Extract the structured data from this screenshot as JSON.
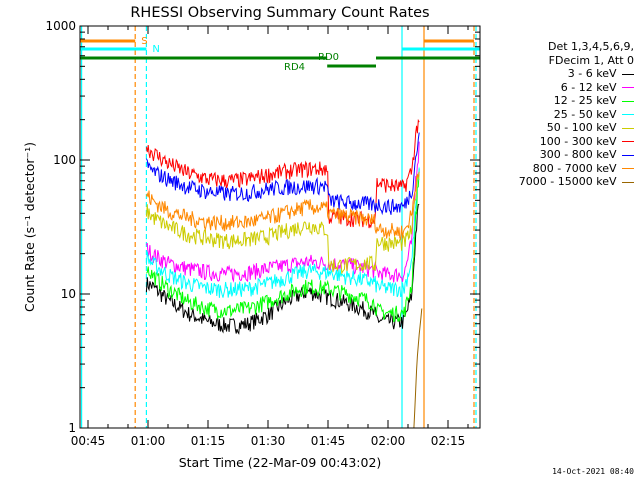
{
  "chart_data": {
    "type": "line",
    "title": "RHESSI Observing Summary Count Rates",
    "xlabel": "Start Time (22-Mar-09 00:43:02)",
    "ylabel": "Count Rate (s⁻¹ detector⁻¹)",
    "yscale": "log",
    "ylim": [
      1,
      1000
    ],
    "xlim_minutes": [
      43.0,
      143.0
    ],
    "x_ticks": [
      {
        "label": "00:45",
        "minute": 45
      },
      {
        "label": "01:00",
        "minute": 60
      },
      {
        "label": "01:15",
        "minute": 75
      },
      {
        "label": "01:30",
        "minute": 90
      },
      {
        "label": "01:45",
        "minute": 105
      },
      {
        "label": "02:00",
        "minute": 120
      },
      {
        "label": "02:15",
        "minute": 135
      }
    ],
    "y_ticks": [
      {
        "label": "1",
        "value": 1
      },
      {
        "label": "10",
        "value": 10
      },
      {
        "label": "100",
        "value": 100
      },
      {
        "label": "1000",
        "value": 1000
      }
    ],
    "legend_header": [
      "Det 1,3,4,5,6,9,",
      "FDecim 1, Att 0"
    ],
    "series": [
      {
        "name": "3 - 6 keV",
        "color": "#000000",
        "minutes": [
          59.6,
          61,
          65,
          70,
          75,
          80,
          85,
          90,
          95,
          100,
          104.9,
          105.1,
          110,
          115,
          116.9,
          117.1,
          120,
          124,
          126,
          127,
          128
        ],
        "values": [
          12,
          11.5,
          9,
          7.2,
          6.2,
          5.8,
          6,
          7,
          9,
          10.5,
          9.5,
          9.5,
          8.5,
          7.5,
          7,
          6.5,
          6.2,
          6.2,
          10,
          30,
          55
        ]
      },
      {
        "name": "6 - 12 keV",
        "color": "#ff00ff",
        "minutes": [
          59.6,
          61,
          65,
          70,
          75,
          80,
          85,
          90,
          95,
          100,
          104.9,
          105.1,
          110,
          115,
          116.9,
          117.1,
          120,
          124,
          126,
          127,
          128
        ],
        "values": [
          22,
          20,
          17,
          15.5,
          14.5,
          14.2,
          14.5,
          15.5,
          16.5,
          17.5,
          17,
          17,
          16.5,
          15.5,
          15,
          14.5,
          14,
          14,
          25,
          80,
          140
        ]
      },
      {
        "name": "12 - 25 keV",
        "color": "#00ff00",
        "minutes": [
          59.6,
          61,
          65,
          70,
          75,
          80,
          85,
          90,
          95,
          100,
          104.9,
          105.1,
          110,
          115,
          116.9,
          117.1,
          120,
          124,
          126,
          127,
          128
        ],
        "values": [
          16,
          14,
          11,
          8.8,
          7.8,
          7.5,
          7.8,
          8.8,
          10.2,
          11.5,
          11,
          11,
          10,
          9,
          8.5,
          7.5,
          7.2,
          7.2,
          12,
          40,
          100
        ]
      },
      {
        "name": "25 - 50 keV",
        "color": "#00ffff",
        "minutes": [
          59.6,
          61,
          65,
          70,
          75,
          80,
          85,
          90,
          95,
          100,
          104.9,
          105.1,
          110,
          115,
          116.9,
          117.1,
          120,
          124,
          126,
          127,
          128
        ],
        "values": [
          19,
          17,
          14,
          12,
          11,
          10.8,
          11,
          12,
          13.5,
          15,
          14.5,
          14.5,
          13.5,
          12.5,
          12,
          11.5,
          11,
          11,
          18,
          50,
          90
        ]
      },
      {
        "name": "50 - 100 keV",
        "color": "#cccc00",
        "minutes": [
          59.6,
          61,
          65,
          70,
          75,
          80,
          85,
          90,
          95,
          100,
          104.9,
          105.1,
          110,
          115,
          116.9,
          117.1,
          120,
          124,
          126,
          127,
          128
        ],
        "values": [
          42,
          38,
          32,
          28,
          26,
          25,
          25.5,
          27,
          30,
          33,
          30,
          16.5,
          16.5,
          17,
          16.5,
          25,
          24,
          24,
          30,
          60,
          90
        ]
      },
      {
        "name": "100 - 300 keV",
        "color": "#ff0000",
        "minutes": [
          59.6,
          61,
          65,
          70,
          75,
          80,
          85,
          90,
          95,
          100,
          104.9,
          105.1,
          110,
          115,
          116.9,
          117.1,
          120,
          124,
          126,
          127,
          128
        ],
        "values": [
          125,
          115,
          95,
          80,
          72,
          70,
          72,
          78,
          83,
          86,
          86,
          38,
          37,
          36,
          36,
          68,
          65,
          62,
          85,
          160,
          220
        ]
      },
      {
        "name": "300 - 800 keV",
        "color": "#0000ff",
        "minutes": [
          59.6,
          61,
          65,
          70,
          75,
          80,
          85,
          90,
          95,
          100,
          104.9,
          105.1,
          110,
          115,
          116.9,
          117.1,
          120,
          124,
          126,
          127,
          128
        ],
        "values": [
          90,
          83,
          72,
          63,
          58,
          56,
          57,
          61,
          63,
          64,
          64,
          50,
          48,
          47,
          46,
          47,
          45,
          45,
          60,
          110,
          160
        ]
      },
      {
        "name": "800 - 7000 keV",
        "color": "#ff8800",
        "minutes": [
          59.6,
          61,
          65,
          70,
          75,
          80,
          85,
          90,
          95,
          100,
          104.9,
          105.1,
          110,
          115,
          116.9,
          117.1,
          120,
          124,
          126,
          127,
          128
        ],
        "values": [
          56,
          50,
          42,
          37,
          34.5,
          34,
          34.5,
          37,
          41,
          45,
          43,
          40,
          38,
          36,
          35,
          31,
          30,
          29,
          40,
          70,
          100
        ]
      },
      {
        "name": "7000 - 15000 keV",
        "color": "#996600",
        "minutes": [
          59.6,
          126.5,
          127.2,
          127.8,
          128.5
        ],
        "values": [
          1,
          1,
          3,
          5,
          8
        ]
      }
    ],
    "annotations": [
      {
        "text": "S",
        "color": "#ff8800",
        "minute": 56.8
      },
      {
        "text": "N",
        "color": "#00ffff",
        "minute": 60
      },
      {
        "text": "RD0",
        "color": "#008000"
      },
      {
        "text": "RD4",
        "color": "#008000"
      }
    ],
    "flags": [
      {
        "name": "S (SAA)",
        "color": "#ff8800",
        "from": 43,
        "to": 56.8
      },
      {
        "name": "S (SAA)",
        "color": "#ff8800",
        "from": 129,
        "to": 141.5
      },
      {
        "name": "N (night)",
        "color": "#00ffff",
        "from": 43,
        "to": 59.6
      },
      {
        "name": "N (night)",
        "color": "#00ffff",
        "from": 123.5,
        "to": 143
      },
      {
        "name": "RD0",
        "color": "#008000",
        "from": 43,
        "to": 104.8
      },
      {
        "name": "RD0",
        "color": "#008000",
        "from": 117,
        "to": 143
      },
      {
        "name": "RD4",
        "color": "#008000",
        "from": 104.8,
        "to": 117
      }
    ],
    "vertical_markers": [
      {
        "minute": 43.4,
        "color": "#00ffff",
        "style": "solid"
      },
      {
        "minute": 56.8,
        "color": "#ff8800",
        "style": "dashed"
      },
      {
        "minute": 59.6,
        "color": "#00ffff",
        "style": "dashed"
      },
      {
        "minute": 123.5,
        "color": "#00ffff",
        "style": "solid"
      },
      {
        "minute": 129.0,
        "color": "#ff8800",
        "style": "solid"
      },
      {
        "minute": 141.5,
        "color": "#ff8800",
        "style": "dashed"
      },
      {
        "minute": 142.0,
        "color": "#00ffff",
        "style": "dashed"
      }
    ],
    "grid": false,
    "legend_position": "right"
  },
  "footer": {
    "timestamp": "14-Oct-2021 08:40"
  }
}
